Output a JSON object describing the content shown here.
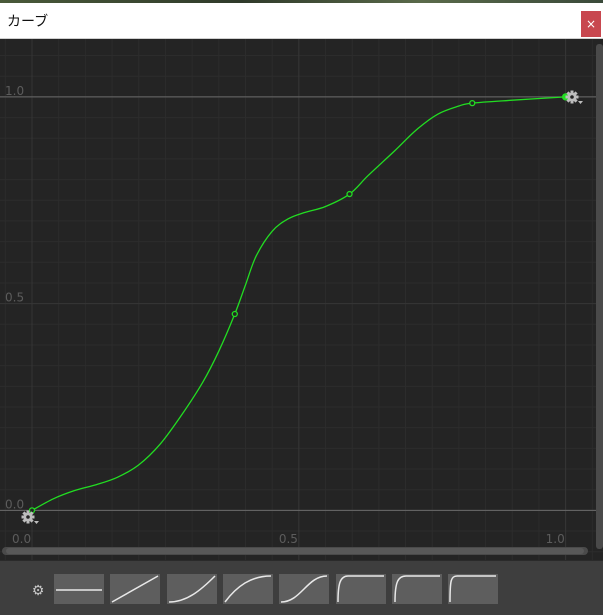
{
  "window": {
    "title": "カーブ",
    "close_glyph": "×"
  },
  "chart_data": {
    "type": "line",
    "x_ticks": [
      "0.0",
      "0.5",
      "1.0"
    ],
    "y_ticks": [
      "0.0",
      "0.5",
      "1.0"
    ],
    "xlim": [
      -0.06,
      1.07
    ],
    "ylim": [
      -0.12,
      1.14
    ],
    "grid": true,
    "curve_color": "#22dd22",
    "keys": [
      {
        "x": 0.0,
        "y": 0.0
      },
      {
        "x": 0.38,
        "y": 0.475
      },
      {
        "x": 0.595,
        "y": 0.765
      },
      {
        "x": 0.825,
        "y": 0.985
      },
      {
        "x": 1.0,
        "y": 1.0
      }
    ],
    "curve": [
      [
        0.0,
        0.0
      ],
      [
        0.04,
        0.028
      ],
      [
        0.08,
        0.048
      ],
      [
        0.12,
        0.062
      ],
      [
        0.16,
        0.08
      ],
      [
        0.2,
        0.11
      ],
      [
        0.24,
        0.16
      ],
      [
        0.28,
        0.23
      ],
      [
        0.32,
        0.31
      ],
      [
        0.35,
        0.385
      ],
      [
        0.38,
        0.475
      ],
      [
        0.4,
        0.545
      ],
      [
        0.42,
        0.615
      ],
      [
        0.45,
        0.675
      ],
      [
        0.48,
        0.705
      ],
      [
        0.51,
        0.72
      ],
      [
        0.55,
        0.735
      ],
      [
        0.595,
        0.765
      ],
      [
        0.63,
        0.81
      ],
      [
        0.68,
        0.87
      ],
      [
        0.72,
        0.92
      ],
      [
        0.76,
        0.958
      ],
      [
        0.8,
        0.978
      ],
      [
        0.825,
        0.985
      ],
      [
        0.9,
        0.992
      ],
      [
        1.0,
        1.0
      ]
    ]
  },
  "icons": {
    "left_gear": "gear-dropdown-icon",
    "right_gear": "gear-dropdown-icon",
    "preset_gear": "gear-icon"
  },
  "presets": [
    {
      "name": "constant"
    },
    {
      "name": "linear"
    },
    {
      "name": "ease-in"
    },
    {
      "name": "ease-out"
    },
    {
      "name": "ease-in-out"
    },
    {
      "name": "step-start-soft"
    },
    {
      "name": "step-start-mid"
    },
    {
      "name": "step-start-sharp"
    }
  ]
}
